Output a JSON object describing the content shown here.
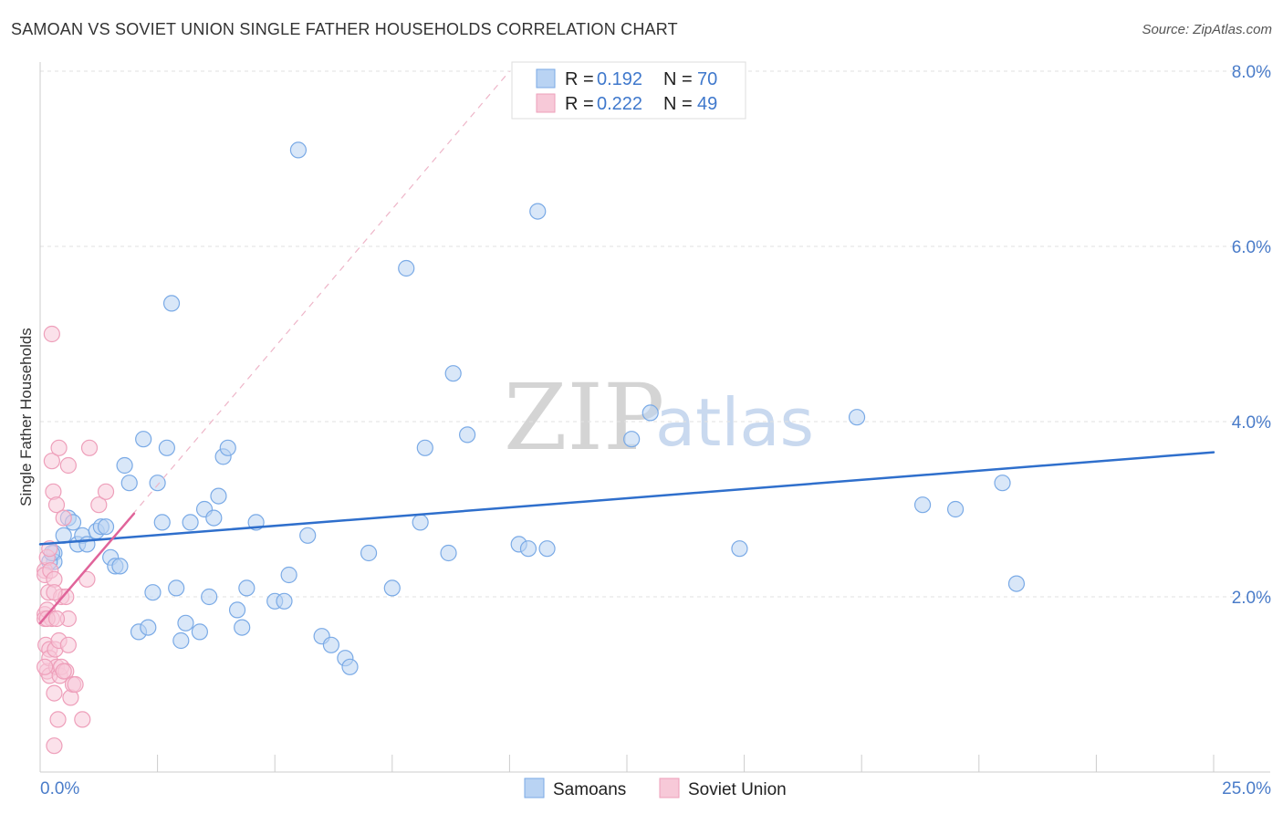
{
  "chart_data": {
    "type": "scatter",
    "title": "SAMOAN VS SOVIET UNION SINGLE FATHER HOUSEHOLDS CORRELATION CHART",
    "source": "Source: ZipAtlas.com",
    "ylabel": "Single Father Households",
    "xlim": [
      0,
      25
    ],
    "ylim": [
      0,
      8
    ],
    "x_tick_labels": [
      "0.0%",
      "25.0%"
    ],
    "y_ticks": [
      2,
      4,
      6,
      8
    ],
    "y_tick_labels": [
      "2.0%",
      "4.0%",
      "6.0%",
      "8.0%"
    ],
    "watermark": [
      "ZIP",
      "atlas"
    ],
    "legend": [
      {
        "r_label": "R =",
        "r_value": "0.192",
        "n_label": "N =",
        "n_value": "70"
      },
      {
        "r_label": "R =",
        "r_value": "0.222",
        "n_label": "N =",
        "n_value": "49"
      }
    ],
    "series": [
      {
        "name": "Samoans",
        "color": "#7aaae6",
        "fill": "#b9d3f3",
        "line_color": "#2f6fcc",
        "trend": {
          "x": [
            0,
            25
          ],
          "y": [
            2.6,
            3.65
          ]
        },
        "points": [
          [
            0.3,
            2.5
          ],
          [
            0.3,
            2.4
          ],
          [
            0.5,
            2.7
          ],
          [
            0.6,
            2.9
          ],
          [
            0.7,
            2.85
          ],
          [
            0.8,
            2.6
          ],
          [
            0.9,
            2.7
          ],
          [
            1.0,
            2.6
          ],
          [
            1.2,
            2.75
          ],
          [
            1.3,
            2.8
          ],
          [
            1.4,
            2.8
          ],
          [
            1.5,
            2.45
          ],
          [
            1.6,
            2.35
          ],
          [
            1.7,
            2.35
          ],
          [
            1.8,
            3.5
          ],
          [
            1.9,
            3.3
          ],
          [
            2.1,
            1.6
          ],
          [
            2.2,
            3.8
          ],
          [
            2.3,
            1.65
          ],
          [
            2.4,
            2.05
          ],
          [
            2.5,
            3.3
          ],
          [
            2.6,
            2.85
          ],
          [
            2.7,
            3.7
          ],
          [
            2.8,
            5.35
          ],
          [
            2.9,
            2.1
          ],
          [
            3.0,
            1.5
          ],
          [
            3.1,
            1.7
          ],
          [
            3.2,
            2.85
          ],
          [
            3.4,
            1.6
          ],
          [
            3.5,
            3.0
          ],
          [
            3.6,
            2.0
          ],
          [
            3.7,
            2.9
          ],
          [
            3.8,
            3.15
          ],
          [
            3.9,
            3.6
          ],
          [
            4.0,
            3.7
          ],
          [
            4.2,
            1.85
          ],
          [
            4.3,
            1.65
          ],
          [
            4.4,
            2.1
          ],
          [
            4.6,
            2.85
          ],
          [
            5.0,
            1.95
          ],
          [
            5.2,
            1.95
          ],
          [
            5.3,
            2.25
          ],
          [
            5.5,
            7.1
          ],
          [
            5.7,
            2.7
          ],
          [
            6.0,
            1.55
          ],
          [
            6.2,
            1.45
          ],
          [
            6.5,
            1.3
          ],
          [
            6.6,
            1.2
          ],
          [
            7.0,
            2.5
          ],
          [
            7.5,
            2.1
          ],
          [
            7.8,
            5.75
          ],
          [
            8.1,
            2.85
          ],
          [
            8.2,
            3.7
          ],
          [
            8.7,
            2.5
          ],
          [
            8.8,
            4.55
          ],
          [
            9.1,
            3.85
          ],
          [
            10.2,
            2.6
          ],
          [
            10.4,
            2.55
          ],
          [
            10.6,
            6.4
          ],
          [
            10.8,
            2.55
          ],
          [
            12.6,
            3.8
          ],
          [
            13.0,
            4.1
          ],
          [
            14.9,
            2.55
          ],
          [
            17.4,
            4.05
          ],
          [
            18.8,
            3.05
          ],
          [
            19.5,
            3.0
          ],
          [
            20.5,
            3.3
          ],
          [
            20.8,
            2.15
          ],
          [
            0.2,
            2.4
          ],
          [
            0.25,
            2.5
          ]
        ]
      },
      {
        "name": "Soviet Union",
        "color": "#ee9fba",
        "fill": "#f7c9d8",
        "line_color": "#e0649a",
        "trend": {
          "x": [
            0,
            2.0
          ],
          "y": [
            1.7,
            2.95
          ]
        },
        "trend_ext": {
          "x": [
            0,
            10
          ],
          "y": [
            1.7,
            8.0
          ]
        },
        "points": [
          [
            0.1,
            2.3
          ],
          [
            0.1,
            2.25
          ],
          [
            0.1,
            1.8
          ],
          [
            0.1,
            1.75
          ],
          [
            0.12,
            1.45
          ],
          [
            0.15,
            2.45
          ],
          [
            0.15,
            1.85
          ],
          [
            0.15,
            1.15
          ],
          [
            0.18,
            2.05
          ],
          [
            0.2,
            1.4
          ],
          [
            0.2,
            1.3
          ],
          [
            0.2,
            1.1
          ],
          [
            0.22,
            2.3
          ],
          [
            0.25,
            5.0
          ],
          [
            0.25,
            3.55
          ],
          [
            0.25,
            1.75
          ],
          [
            0.28,
            3.2
          ],
          [
            0.3,
            2.2
          ],
          [
            0.3,
            0.9
          ],
          [
            0.3,
            0.3
          ],
          [
            0.32,
            1.4
          ],
          [
            0.35,
            3.05
          ],
          [
            0.35,
            1.2
          ],
          [
            0.38,
            0.6
          ],
          [
            0.4,
            3.7
          ],
          [
            0.4,
            1.5
          ],
          [
            0.42,
            1.1
          ],
          [
            0.45,
            2.0
          ],
          [
            0.45,
            1.2
          ],
          [
            0.5,
            2.9
          ],
          [
            0.55,
            2.0
          ],
          [
            0.55,
            1.15
          ],
          [
            0.6,
            1.75
          ],
          [
            0.6,
            1.45
          ],
          [
            0.6,
            3.5
          ],
          [
            0.65,
            0.85
          ],
          [
            0.7,
            1.0
          ],
          [
            0.75,
            1.0
          ],
          [
            0.9,
            0.6
          ],
          [
            1.0,
            2.2
          ],
          [
            1.05,
            3.7
          ],
          [
            1.25,
            3.05
          ],
          [
            1.4,
            3.2
          ],
          [
            0.15,
            1.75
          ],
          [
            0.1,
            1.2
          ],
          [
            0.2,
            2.55
          ],
          [
            0.35,
            1.75
          ],
          [
            0.5,
            1.15
          ],
          [
            0.3,
            2.05
          ]
        ]
      }
    ]
  }
}
